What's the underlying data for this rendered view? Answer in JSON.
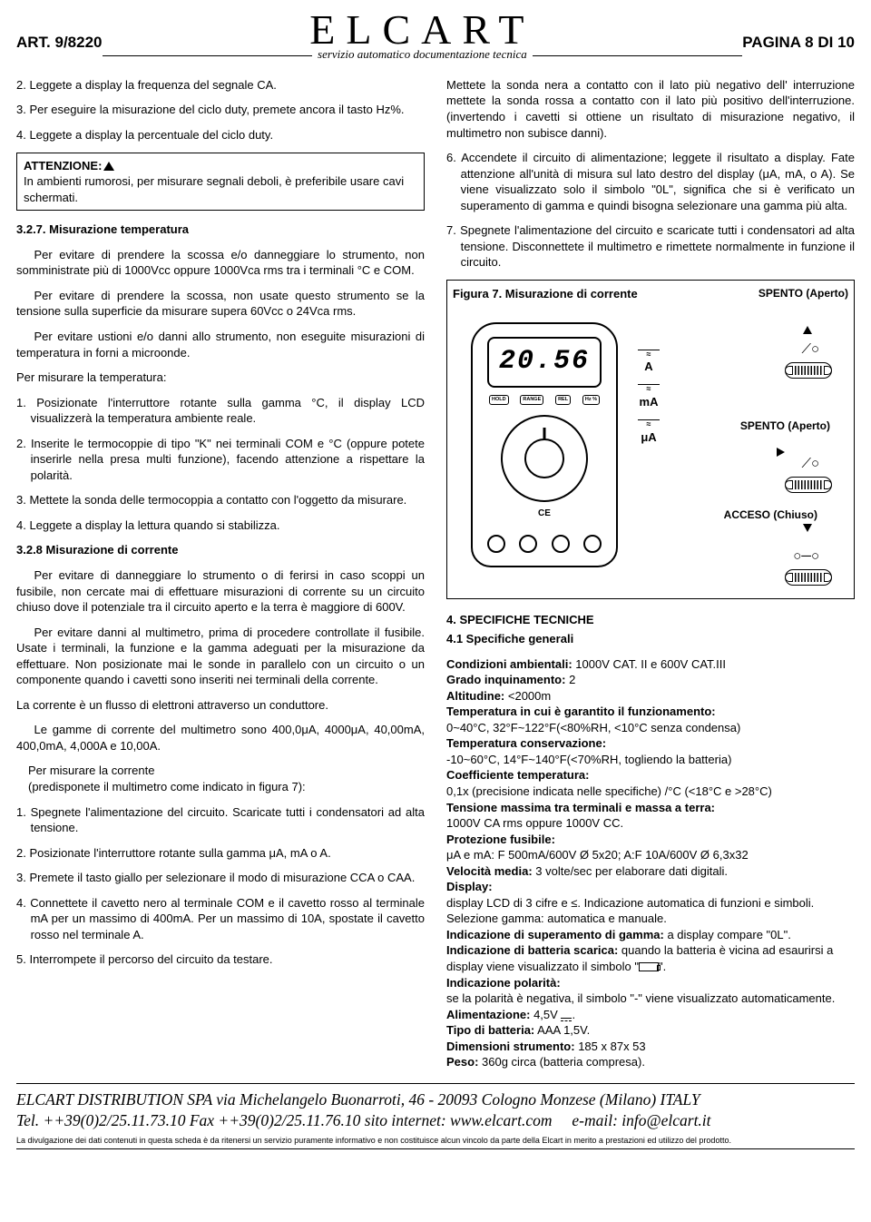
{
  "header": {
    "art": "ART. 9/8220",
    "brand": "ELCART",
    "sub": "servizio automatico documentazione tecnica",
    "page": "PAGINA 8 DI 10"
  },
  "left": {
    "p1": "2. Leggete a display la frequenza del segnale CA.",
    "p2": "3. Per eseguire la misurazione del ciclo duty, premete ancora il tasto Hz%.",
    "p3": "4. Leggete a display la percentuale del ciclo duty.",
    "warn_title": "ATTENZIONE:",
    "warn_body": "In ambienti rumorosi, per misurare segnali deboli, è preferibile usare cavi schermati.",
    "h327": "3.2.7. Misurazione temperatura",
    "p327a": "Per evitare di prendere la scossa e/o danneggiare lo strumento, non somministrate più di 1000Vcc oppure 1000Vca rms tra i terminali °C e COM.",
    "p327b": "Per evitare di prendere la scossa, non usate questo strumento se la tensione sulla superficie da misurare supera 60Vcc o 24Vca rms.",
    "p327c": "Per evitare ustioni e/o danni allo strumento, non eseguite misurazioni di temperatura in forni a microonde.",
    "p327d": "Per misurare la temperatura:",
    "li1": "1. Posizionate l'interruttore rotante sulla gamma °C, il display LCD visualizzerà la temperatura ambiente reale.",
    "li2": "2. Inserite le termocoppie di tipo \"K\" nei terminali COM e °C (oppure potete inserirle nella presa multi funzione), facendo attenzione a rispettare la polarità.",
    "li3": "3. Mettete la sonda delle termocoppia a contatto con l'oggetto da misurare.",
    "li4": "4. Leggete a display la lettura quando si stabilizza.",
    "h328": "3.2.8 Misurazione di corrente",
    "p328a": "Per evitare di danneggiare lo strumento o di ferirsi in caso scoppi un fusibile, non cercate mai di effettuare misurazioni di corrente su un circuito chiuso dove il potenziale tra il circuito aperto e la terra è maggiore di 600V.",
    "p328b": "Per evitare danni al multimetro, prima di procedere controllate il fusibile. Usate i terminali, la funzione e la gamma adeguati per la misurazione da effettuare. Non posizionate mai le sonde in parallelo con un circuito o un componente quando i cavetti sono inseriti nei terminali della corrente.",
    "p328c": "La corrente è un flusso di elettroni attraverso un conduttore.",
    "p328d": "Le gamme di corrente del multimetro sono 400,0μA, 4000μA, 40,00mA, 400,0mA, 4,000A e 10,00A.",
    "p328e": "Per misurare la corrente",
    "p328f": "(predisponete il multimetro come indicato in figura 7):",
    "mli1": "1. Spegnete l'alimentazione del circuito. Scaricate tutti i condensatori ad alta tensione.",
    "mli2": "2. Posizionate l'interruttore rotante sulla gamma μA, mA o A.",
    "mli3": "3. Premete il tasto giallo per selezionare il modo di misurazione CCA o CAA.",
    "mli4": "4. Connettete il cavetto nero al terminale COM e il cavetto rosso al terminale mA per un massimo di 400mA. Per un massimo di 10A, spostate il cavetto rosso nel terminale A.",
    "mli5": "5. Interrompete il percorso del circuito da testare."
  },
  "right": {
    "rp1": "Mettete la sonda nera a contatto con il lato più negativo dell' interruzione mettete la sonda rossa a contatto con il lato più positivo dell'interruzione. (invertendo i cavetti si ottiene un risultato di misurazione negativo, il multimetro non subisce danni).",
    "rli6": "6. Accendete il circuito di alimentazione; leggete il risultato a display. Fate attenzione all'unità di misura sul lato destro del display (μA, mA, o A). Se viene visualizzato solo il simbolo \"0L\", significa che si è verificato un superamento di gamma e quindi bisogna selezionare una gamma più alta.",
    "rli7": "7. Spegnete l'alimentazione del circuito e scaricate tutti i condensatori ad alta tensione. Disconnettete il multimetro e rimettete normalmente in funzione il circuito.",
    "fig_title": "Figura 7. Misurazione di corrente",
    "fig_spento": "SPENTO (Aperto)",
    "fig_acceso": "ACCESO (Chiuso)",
    "fig_lcd": "20.56",
    "fig_A": "A",
    "fig_mA": "mA",
    "fig_uA": "μA",
    "h4": "4. SPECIFICHE TECNICHE",
    "h41": "4.1 Specifiche generali",
    "s1l": "Condizioni ambientali:",
    "s1v": " 1000V CAT. II e 600V CAT.III",
    "s2l": "Grado inquinamento:",
    "s2v": " 2",
    "s3l": "Altitudine:",
    "s3v": " <2000m",
    "s4l": "Temperatura in cui è garantito il funzionamento:",
    "s4v": "0~40°C, 32°F~122°F(<80%RH, <10°C senza condensa)",
    "s5l": "Temperatura conservazione:",
    "s5v": "-10~60°C, 14°F~140°F(<70%RH, togliendo la batteria)",
    "s6l": "Coefficiente temperatura:",
    "s6v": "0,1x (precisione indicata nelle specifiche) /°C (<18°C e >28°C)",
    "s7l": "Tensione massima tra terminali e massa a terra:",
    "s7v": "1000V CA rms oppure 1000V CC.",
    "s8l": "Protezione fusibile:",
    "s8v": "μA e mA: F 500mA/600V Ø 5x20; A:F 10A/600V Ø 6,3x32",
    "s9l": "Velocità media:",
    "s9v": " 3 volte/sec per elaborare dati digitali.",
    "s10l": "Display:",
    "s10v": "display LCD di 3 cifre e ≤. Indicazione automatica di funzioni e simboli. Selezione gamma: automatica e manuale.",
    "s11l": "Indicazione di superamento di gamma:",
    "s11v": " a display compare \"0L\".",
    "s12l": "Indicazione di batteria scarica:",
    "s12v": " quando la batteria è vicina ad esaurirsi a display viene visualizzato il simbolo \"",
    "s12v2": "\".",
    "s13l": "Indicazione polarità:",
    "s13v": "se la polarità è negativa, il simbolo \"-\" viene visualizzato automaticamente.",
    "s14l": "Alimentazione:",
    "s14v": " 4,5V",
    "s15l": "Tipo di batteria:",
    "s15v": " AAA 1,5V.",
    "s16l": "Dimensioni strumento:",
    "s16v": " 185 x 87x 53",
    "s17l": "Peso:",
    "s17v": " 360g circa (batteria compresa)."
  },
  "footer": {
    "l1": "ELCART DISTRIBUTION SPA  via Michelangelo Buonarroti, 46 - 20093 Cologno Monzese (Milano) ITALY",
    "l2a": "Tel. ++39(0)2/25.11.73.10 Fax ++39(0)2/25.11.76.10 sito internet: www.elcart.com",
    "l2b": "e-mail: info@elcart.it",
    "disc": "La divulgazione dei dati contenuti in questa scheda è da ritenersi un servizio puramente informativo e non costituisce alcun vincolo da parte della Elcart in merito a prestazioni ed utilizzo del prodotto."
  }
}
